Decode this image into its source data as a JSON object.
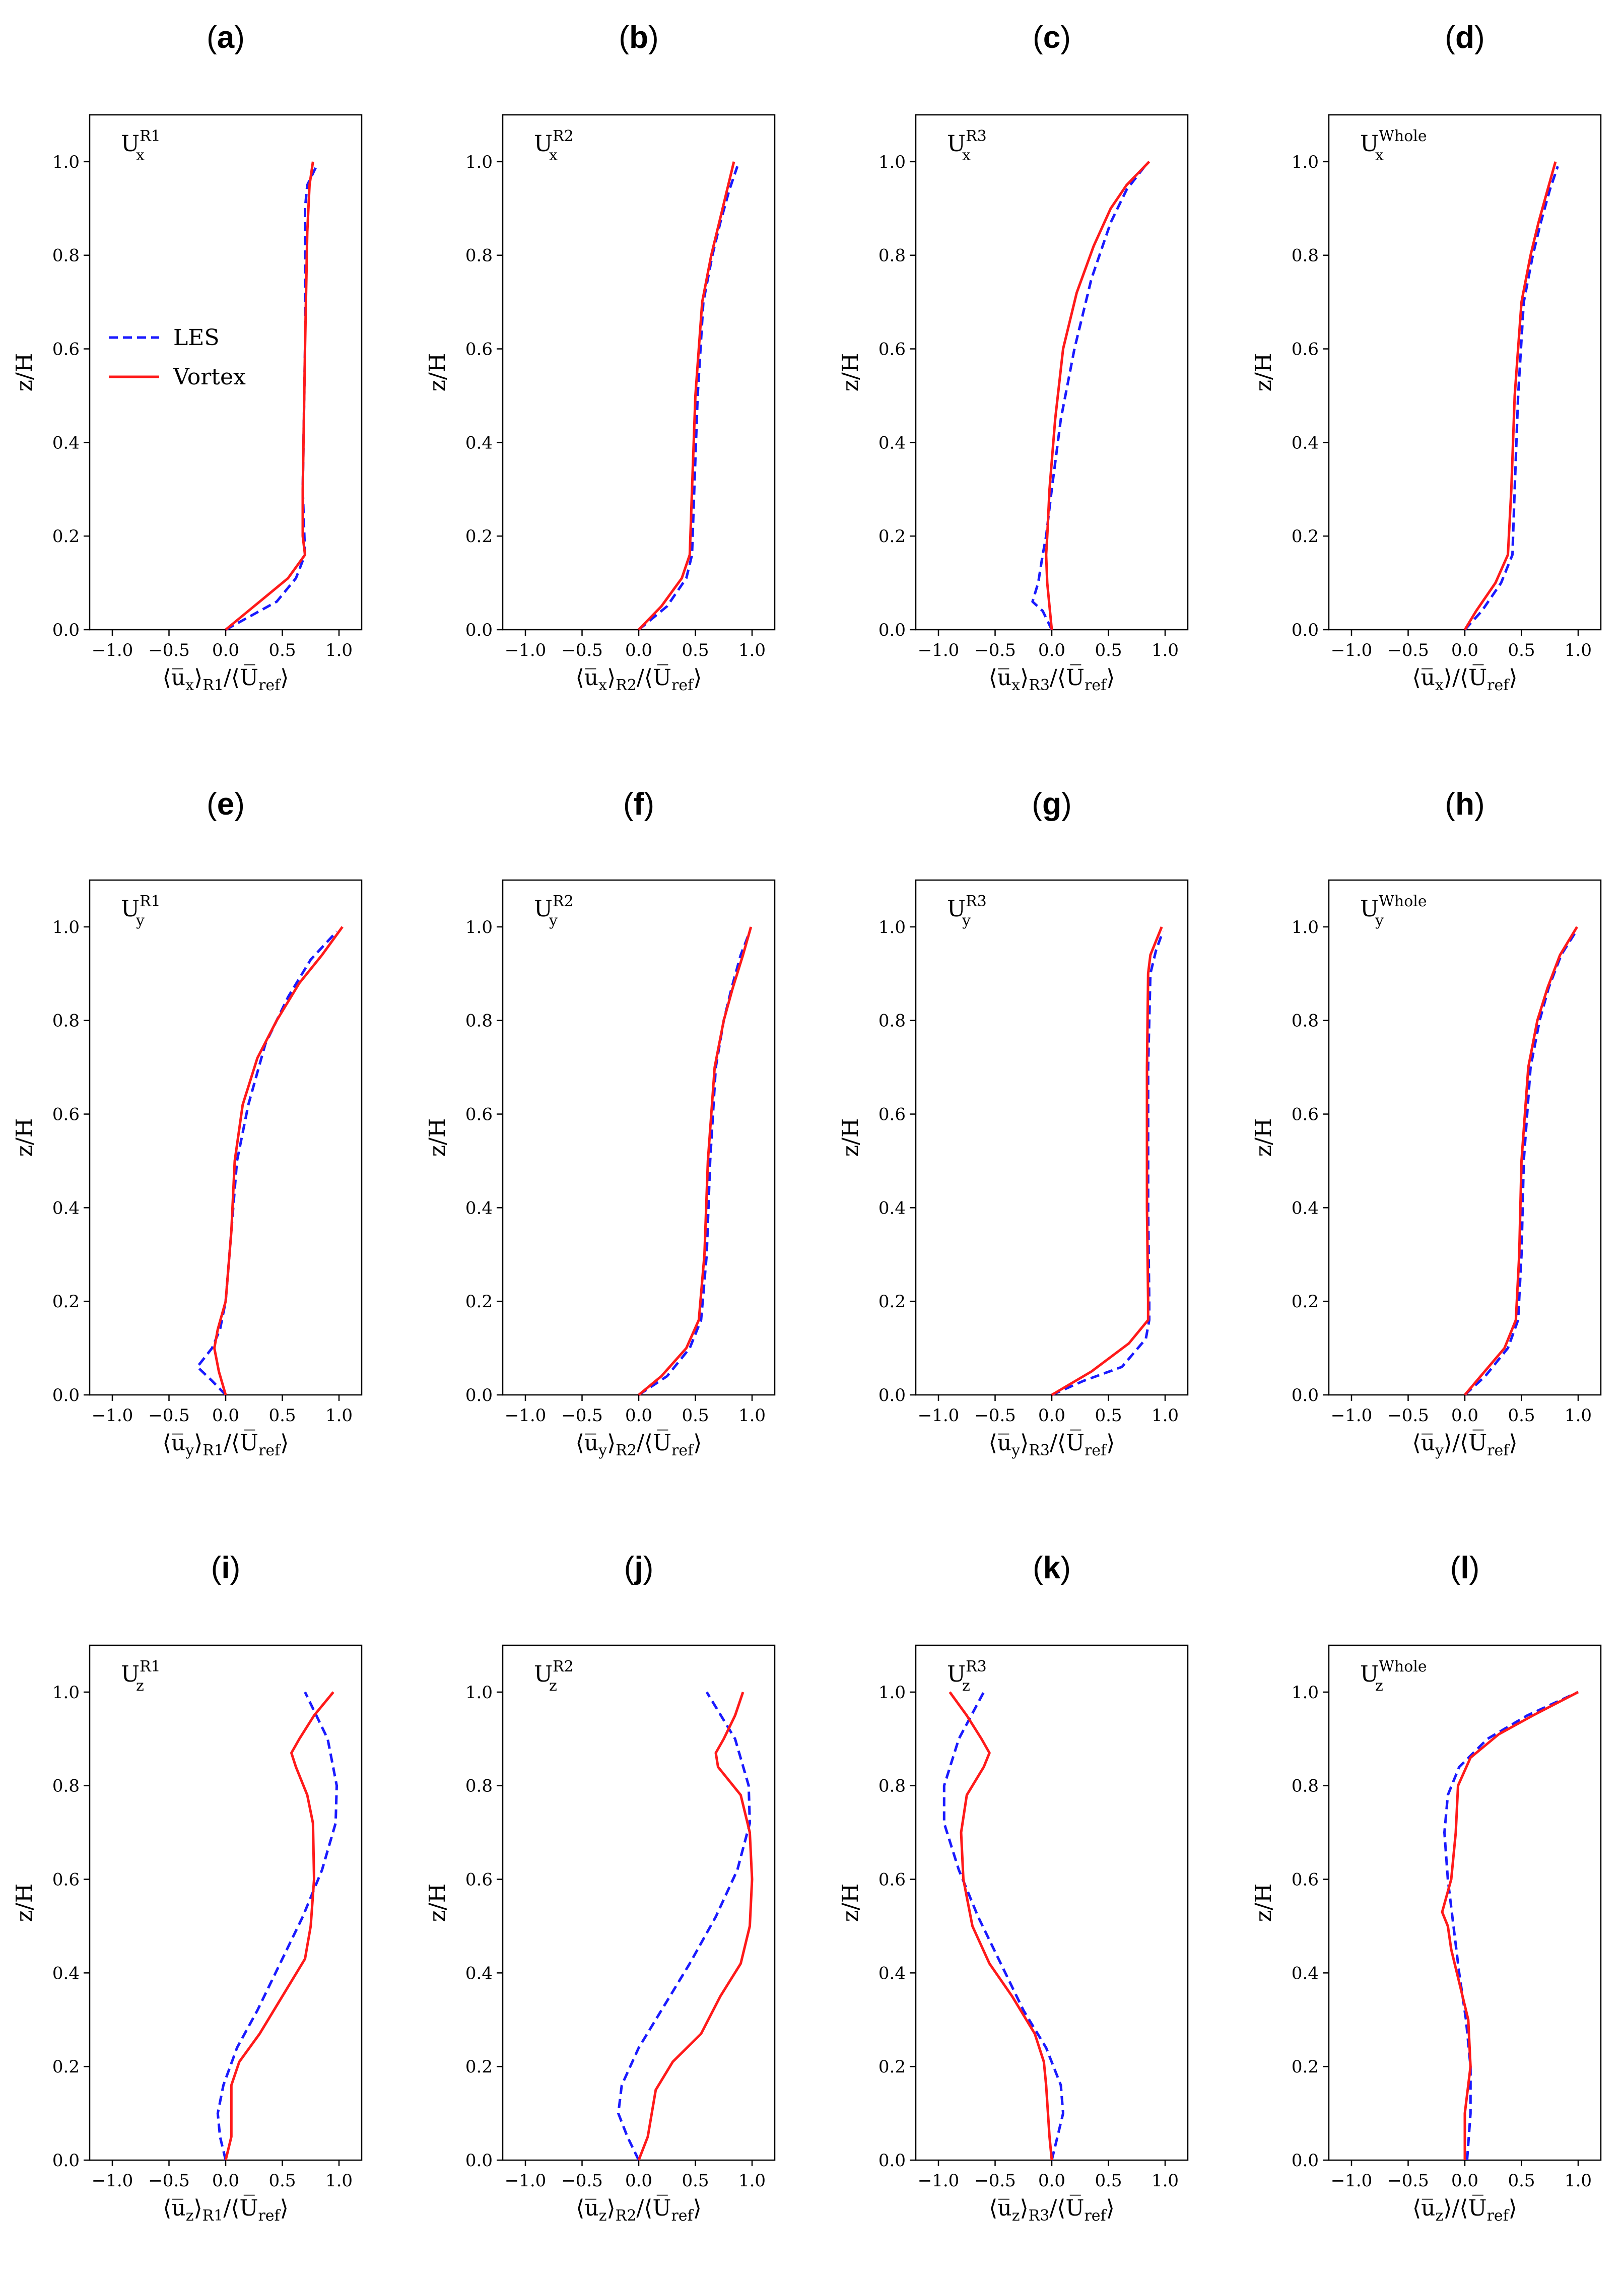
{
  "legend": {
    "les": "LES",
    "vortex": "Vortex"
  },
  "colors": {
    "les": "#1a1aff",
    "vortex": "#ff1a1a"
  },
  "chart_data": [
    {
      "panel": "a",
      "type": "line",
      "comp": "U",
      "comp_sub": "x",
      "comp_sup": "R1",
      "xlabel_u": "x",
      "xlabel_region": "R1",
      "ylabel": "z/H",
      "xlim": [
        -1.2,
        1.2
      ],
      "ylim": [
        0,
        1.1
      ],
      "xticks": [
        -1.0,
        -0.5,
        0.0,
        0.5,
        1.0
      ],
      "yticks": [
        0.0,
        0.2,
        0.4,
        0.6,
        0.8,
        1.0
      ],
      "legend": true,
      "series": [
        {
          "name": "LES",
          "x": [
            0,
            0.45,
            0.62,
            0.7,
            0.68,
            0.7,
            0.7,
            0.72,
            0.8
          ],
          "z": [
            0,
            0.06,
            0.11,
            0.16,
            0.3,
            0.6,
            0.9,
            0.95,
            0.99
          ]
        },
        {
          "name": "Vortex",
          "x": [
            0,
            0.25,
            0.55,
            0.7,
            0.68,
            0.68,
            0.7,
            0.72,
            0.74,
            0.77
          ],
          "z": [
            0,
            0.05,
            0.11,
            0.16,
            0.2,
            0.3,
            0.6,
            0.85,
            0.95,
            1.0
          ]
        }
      ]
    },
    {
      "panel": "b",
      "type": "line",
      "comp": "U",
      "comp_sub": "x",
      "comp_sup": "R2",
      "xlabel_u": "x",
      "xlabel_region": "R2",
      "ylabel": "z/H",
      "xlim": [
        -1.2,
        1.2
      ],
      "ylim": [
        0,
        1.1
      ],
      "xticks": [
        -1.0,
        -0.5,
        0.0,
        0.5,
        1.0
      ],
      "yticks": [
        0.0,
        0.2,
        0.4,
        0.6,
        0.8,
        1.0
      ],
      "legend": false,
      "series": [
        {
          "name": "LES",
          "x": [
            0,
            0.25,
            0.42,
            0.47,
            0.49,
            0.52,
            0.57,
            0.65,
            0.72,
            0.8,
            0.87
          ],
          "z": [
            0,
            0.05,
            0.11,
            0.16,
            0.3,
            0.5,
            0.7,
            0.8,
            0.87,
            0.94,
            0.99
          ]
        },
        {
          "name": "Vortex",
          "x": [
            0,
            0.2,
            0.38,
            0.45,
            0.47,
            0.5,
            0.56,
            0.64,
            0.71,
            0.78,
            0.84
          ],
          "z": [
            0,
            0.05,
            0.11,
            0.16,
            0.3,
            0.5,
            0.7,
            0.8,
            0.87,
            0.94,
            1.0
          ]
        }
      ]
    },
    {
      "panel": "c",
      "type": "line",
      "comp": "U",
      "comp_sub": "x",
      "comp_sup": "R3",
      "xlabel_u": "x",
      "xlabel_region": "R3",
      "ylabel": "z/H",
      "xlim": [
        -1.2,
        1.2
      ],
      "ylim": [
        0,
        1.1
      ],
      "xticks": [
        -1.0,
        -0.5,
        0.0,
        0.5,
        1.0
      ],
      "yticks": [
        0.0,
        0.2,
        0.4,
        0.6,
        0.8,
        1.0
      ],
      "legend": false,
      "series": [
        {
          "name": "LES",
          "x": [
            0,
            -0.08,
            -0.17,
            -0.12,
            -0.08,
            -0.05,
            0,
            0.08,
            0.2,
            0.35,
            0.52,
            0.66,
            0.82
          ],
          "z": [
            0,
            0.04,
            0.06,
            0.1,
            0.16,
            0.2,
            0.3,
            0.45,
            0.6,
            0.75,
            0.87,
            0.94,
            0.99
          ]
        },
        {
          "name": "Vortex",
          "x": [
            0,
            -0.02,
            -0.04,
            -0.05,
            -0.04,
            -0.02,
            0.03,
            0.1,
            0.22,
            0.37,
            0.52,
            0.66,
            0.86
          ],
          "z": [
            0,
            0.05,
            0.1,
            0.16,
            0.2,
            0.3,
            0.45,
            0.6,
            0.72,
            0.82,
            0.9,
            0.95,
            1.0
          ]
        }
      ]
    },
    {
      "panel": "d",
      "type": "line",
      "comp": "U",
      "comp_sub": "x",
      "comp_sup": "Whole",
      "xlabel_u": "x",
      "xlabel_region": "",
      "ylabel": "z/H",
      "xlim": [
        -1.2,
        1.2
      ],
      "ylim": [
        0,
        1.1
      ],
      "xticks": [
        -1.0,
        -0.5,
        0.0,
        0.5,
        1.0
      ],
      "yticks": [
        0.0,
        0.2,
        0.4,
        0.6,
        0.8,
        1.0
      ],
      "legend": false,
      "series": [
        {
          "name": "LES",
          "x": [
            0,
            0.15,
            0.32,
            0.42,
            0.44,
            0.47,
            0.52,
            0.6,
            0.67,
            0.75,
            0.82
          ],
          "z": [
            0,
            0.04,
            0.1,
            0.16,
            0.3,
            0.5,
            0.7,
            0.8,
            0.87,
            0.94,
            0.99
          ]
        },
        {
          "name": "Vortex",
          "x": [
            0,
            0.1,
            0.27,
            0.38,
            0.41,
            0.44,
            0.5,
            0.58,
            0.65,
            0.73,
            0.8
          ],
          "z": [
            0,
            0.04,
            0.1,
            0.16,
            0.3,
            0.5,
            0.7,
            0.8,
            0.87,
            0.94,
            1.0
          ]
        }
      ]
    },
    {
      "panel": "e",
      "type": "line",
      "comp": "U",
      "comp_sub": "y",
      "comp_sup": "R1",
      "xlabel_u": "y",
      "xlabel_region": "R1",
      "ylabel": "z/H",
      "xlim": [
        -1.2,
        1.2
      ],
      "ylim": [
        0,
        1.1
      ],
      "xticks": [
        -1.0,
        -0.5,
        0.0,
        0.5,
        1.0
      ],
      "yticks": [
        0.0,
        0.2,
        0.4,
        0.6,
        0.8,
        1.0
      ],
      "legend": false,
      "series": [
        {
          "name": "LES",
          "x": [
            0,
            -0.12,
            -0.25,
            -0.12,
            -0.05,
            0,
            0.05,
            0.1,
            0.2,
            0.35,
            0.55,
            0.75,
            0.98
          ],
          "z": [
            0,
            0.03,
            0.06,
            0.1,
            0.14,
            0.2,
            0.35,
            0.5,
            0.62,
            0.75,
            0.85,
            0.93,
            0.99
          ]
        },
        {
          "name": "Vortex",
          "x": [
            0,
            -0.06,
            -0.1,
            -0.07,
            0,
            0.05,
            0.08,
            0.15,
            0.28,
            0.45,
            0.65,
            0.85,
            1.03
          ],
          "z": [
            0,
            0.05,
            0.1,
            0.14,
            0.2,
            0.35,
            0.5,
            0.62,
            0.72,
            0.8,
            0.88,
            0.94,
            1.0
          ]
        }
      ]
    },
    {
      "panel": "f",
      "type": "line",
      "comp": "U",
      "comp_sub": "y",
      "comp_sup": "R2",
      "xlabel_u": "y",
      "xlabel_region": "R2",
      "ylabel": "z/H",
      "xlim": [
        -1.2,
        1.2
      ],
      "ylim": [
        0,
        1.1
      ],
      "xticks": [
        -1.0,
        -0.5,
        0.0,
        0.5,
        1.0
      ],
      "yticks": [
        0.0,
        0.2,
        0.4,
        0.6,
        0.8,
        1.0
      ],
      "legend": false,
      "series": [
        {
          "name": "LES",
          "x": [
            0,
            0.25,
            0.45,
            0.55,
            0.6,
            0.63,
            0.68,
            0.75,
            0.82,
            0.9,
            0.98
          ],
          "z": [
            0,
            0.04,
            0.1,
            0.16,
            0.3,
            0.5,
            0.7,
            0.8,
            0.87,
            0.94,
            0.99
          ]
        },
        {
          "name": "Vortex",
          "x": [
            0,
            0.2,
            0.42,
            0.53,
            0.58,
            0.61,
            0.67,
            0.75,
            0.83,
            0.92,
            0.99
          ],
          "z": [
            0,
            0.04,
            0.1,
            0.16,
            0.3,
            0.5,
            0.7,
            0.8,
            0.87,
            0.94,
            1.0
          ]
        }
      ]
    },
    {
      "panel": "g",
      "type": "line",
      "comp": "U",
      "comp_sub": "y",
      "comp_sup": "R3",
      "xlabel_u": "y",
      "xlabel_region": "R3",
      "ylabel": "z/H",
      "xlim": [
        -1.2,
        1.2
      ],
      "ylim": [
        0,
        1.1
      ],
      "xticks": [
        -1.0,
        -0.5,
        0.0,
        0.5,
        1.0
      ],
      "yticks": [
        0.0,
        0.2,
        0.4,
        0.6,
        0.8,
        1.0
      ],
      "legend": false,
      "series": [
        {
          "name": "LES",
          "x": [
            0,
            0.28,
            0.62,
            0.83,
            0.86,
            0.86,
            0.85,
            0.85,
            0.87,
            0.92,
            0.98
          ],
          "z": [
            0,
            0.03,
            0.06,
            0.12,
            0.16,
            0.2,
            0.4,
            0.7,
            0.9,
            0.95,
            0.99
          ]
        },
        {
          "name": "Vortex",
          "x": [
            0,
            0.35,
            0.68,
            0.85,
            0.85,
            0.84,
            0.84,
            0.85,
            0.87,
            0.92,
            0.97
          ],
          "z": [
            0,
            0.05,
            0.11,
            0.16,
            0.2,
            0.4,
            0.7,
            0.9,
            0.94,
            0.97,
            1.0
          ]
        }
      ]
    },
    {
      "panel": "h",
      "type": "line",
      "comp": "U",
      "comp_sub": "y",
      "comp_sup": "Whole",
      "xlabel_u": "y",
      "xlabel_region": "",
      "ylabel": "z/H",
      "xlim": [
        -1.2,
        1.2
      ],
      "ylim": [
        0,
        1.1
      ],
      "xticks": [
        -1.0,
        -0.5,
        0.0,
        0.5,
        1.0
      ],
      "yticks": [
        0.0,
        0.2,
        0.4,
        0.6,
        0.8,
        1.0
      ],
      "legend": false,
      "series": [
        {
          "name": "LES",
          "x": [
            0,
            0.18,
            0.38,
            0.47,
            0.5,
            0.52,
            0.58,
            0.66,
            0.74,
            0.85,
            0.98
          ],
          "z": [
            0,
            0.04,
            0.1,
            0.16,
            0.3,
            0.5,
            0.7,
            0.8,
            0.87,
            0.94,
            0.99
          ]
        },
        {
          "name": "Vortex",
          "x": [
            0,
            0.14,
            0.35,
            0.45,
            0.48,
            0.5,
            0.56,
            0.64,
            0.73,
            0.84,
            0.99
          ],
          "z": [
            0,
            0.04,
            0.1,
            0.16,
            0.3,
            0.5,
            0.7,
            0.8,
            0.87,
            0.94,
            1.0
          ]
        }
      ]
    },
    {
      "panel": "i",
      "type": "line",
      "comp": "U",
      "comp_sub": "z",
      "comp_sup": "R1",
      "xlabel_u": "z",
      "xlabel_region": "R1",
      "ylabel": "z/H",
      "xlim": [
        -1.2,
        1.2
      ],
      "ylim": [
        0,
        1.1
      ],
      "xticks": [
        -1.0,
        -0.5,
        0.0,
        0.5,
        1.0
      ],
      "yticks": [
        0.0,
        0.2,
        0.4,
        0.6,
        0.8,
        1.0
      ],
      "legend": false,
      "series": [
        {
          "name": "LES",
          "x": [
            0,
            -0.05,
            -0.07,
            -0.02,
            0.1,
            0.28,
            0.48,
            0.68,
            0.85,
            0.97,
            0.98,
            0.9,
            0.7
          ],
          "z": [
            0,
            0.05,
            0.1,
            0.16,
            0.24,
            0.32,
            0.42,
            0.52,
            0.62,
            0.72,
            0.8,
            0.9,
            1.0
          ]
        },
        {
          "name": "Vortex",
          "x": [
            0,
            0.05,
            0.05,
            0.12,
            0.3,
            0.5,
            0.7,
            0.75,
            0.78,
            0.77,
            0.72,
            0.62,
            0.58,
            0.65,
            0.78,
            0.95
          ],
          "z": [
            0,
            0.05,
            0.16,
            0.21,
            0.27,
            0.35,
            0.43,
            0.5,
            0.6,
            0.72,
            0.78,
            0.84,
            0.87,
            0.9,
            0.95,
            1.0
          ]
        }
      ]
    },
    {
      "panel": "j",
      "type": "line",
      "comp": "U",
      "comp_sub": "z",
      "comp_sup": "R2",
      "xlabel_u": "z",
      "xlabel_region": "R2",
      "ylabel": "z/H",
      "xlim": [
        -1.2,
        1.2
      ],
      "ylim": [
        0,
        1.1
      ],
      "xticks": [
        -1.0,
        -0.5,
        0.0,
        0.5,
        1.0
      ],
      "yticks": [
        0.0,
        0.2,
        0.4,
        0.6,
        0.8,
        1.0
      ],
      "legend": false,
      "series": [
        {
          "name": "LES",
          "x": [
            0,
            -0.1,
            -0.18,
            -0.15,
            0,
            0.2,
            0.45,
            0.68,
            0.87,
            0.98,
            0.97,
            0.85,
            0.6
          ],
          "z": [
            0,
            0.05,
            0.1,
            0.16,
            0.24,
            0.32,
            0.42,
            0.52,
            0.62,
            0.72,
            0.8,
            0.9,
            1.0
          ]
        },
        {
          "name": "Vortex",
          "x": [
            0,
            0.08,
            0.15,
            0.3,
            0.55,
            0.72,
            0.9,
            0.98,
            1.0,
            0.98,
            0.9,
            0.7,
            0.68,
            0.75,
            0.85,
            0.92
          ],
          "z": [
            0,
            0.05,
            0.15,
            0.21,
            0.27,
            0.35,
            0.42,
            0.5,
            0.6,
            0.7,
            0.78,
            0.84,
            0.87,
            0.9,
            0.95,
            1.0
          ]
        }
      ]
    },
    {
      "panel": "k",
      "type": "line",
      "comp": "U",
      "comp_sub": "z",
      "comp_sup": "R3",
      "xlabel_u": "z",
      "xlabel_region": "R3",
      "ylabel": "z/H",
      "xlim": [
        -1.2,
        1.2
      ],
      "ylim": [
        0,
        1.1
      ],
      "xticks": [
        -1.0,
        -0.5,
        0.0,
        0.5,
        1.0
      ],
      "yticks": [
        0.0,
        0.2,
        0.4,
        0.6,
        0.8,
        1.0
      ],
      "legend": false,
      "series": [
        {
          "name": "LES",
          "x": [
            0,
            0.05,
            0.1,
            0.08,
            -0.05,
            -0.25,
            -0.45,
            -0.65,
            -0.82,
            -0.95,
            -0.95,
            -0.82,
            -0.6
          ],
          "z": [
            0,
            0.05,
            0.1,
            0.16,
            0.24,
            0.32,
            0.42,
            0.52,
            0.62,
            0.72,
            0.8,
            0.9,
            1.0
          ]
        },
        {
          "name": "Vortex",
          "x": [
            0,
            -0.02,
            -0.05,
            -0.07,
            -0.15,
            -0.35,
            -0.55,
            -0.7,
            -0.78,
            -0.8,
            -0.75,
            -0.6,
            -0.55,
            -0.62,
            -0.75,
            -0.9
          ],
          "z": [
            0,
            0.05,
            0.16,
            0.21,
            0.27,
            0.35,
            0.42,
            0.5,
            0.6,
            0.7,
            0.78,
            0.84,
            0.87,
            0.9,
            0.95,
            1.0
          ]
        }
      ]
    },
    {
      "panel": "l",
      "type": "line",
      "comp": "U",
      "comp_sub": "z",
      "comp_sup": "Whole",
      "xlabel_u": "z",
      "xlabel_region": "",
      "ylabel": "z/H",
      "xlim": [
        -1.2,
        1.2
      ],
      "ylim": [
        0,
        1.1
      ],
      "xticks": [
        -1.0,
        -0.5,
        0.0,
        0.5,
        1.0
      ],
      "yticks": [
        0.0,
        0.2,
        0.4,
        0.6,
        0.8,
        1.0
      ],
      "legend": false,
      "series": [
        {
          "name": "LES",
          "x": [
            0.02,
            0.05,
            0.05,
            0.01,
            -0.05,
            -0.1,
            -0.15,
            -0.18,
            -0.15,
            -0.05,
            0.2,
            0.55,
            1.0
          ],
          "z": [
            0,
            0.1,
            0.2,
            0.3,
            0.4,
            0.5,
            0.6,
            0.7,
            0.78,
            0.84,
            0.9,
            0.95,
            1.0
          ]
        },
        {
          "name": "Vortex",
          "x": [
            0,
            0,
            0.05,
            0.03,
            -0.05,
            -0.12,
            -0.15,
            -0.2,
            -0.12,
            -0.08,
            -0.06,
            0.05,
            0.3,
            0.6,
            1.0
          ],
          "z": [
            0,
            0.1,
            0.2,
            0.3,
            0.38,
            0.45,
            0.5,
            0.53,
            0.6,
            0.7,
            0.8,
            0.86,
            0.91,
            0.95,
            1.0
          ]
        }
      ]
    }
  ]
}
